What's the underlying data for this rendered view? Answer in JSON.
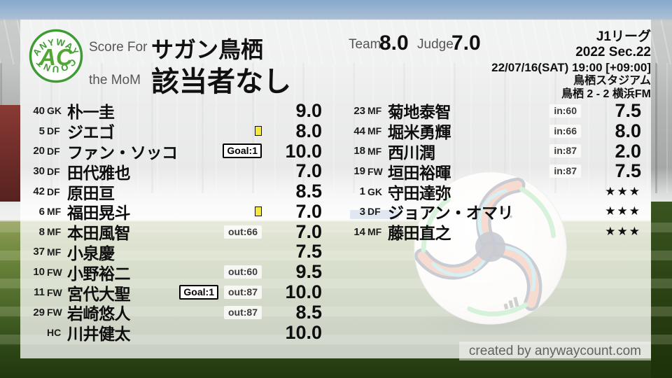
{
  "header": {
    "logo": {
      "arc_top": "ANYWAY",
      "arc_bottom": "COUNT",
      "monogram": "AC"
    },
    "score_for_label": "Score For",
    "team_name": "サガン鳥栖",
    "mom_label": "the MoM",
    "mom_value": "該当者なし",
    "team_label": "Team",
    "team_score": "8.0",
    "judge_label": "Judge",
    "judge_score": "7.0",
    "meta": [
      "J1リーグ",
      "2022 Sec.22",
      "22/07/16(SAT) 19:00 [+09:00]",
      "鳥栖スタジアム",
      "鳥栖 2 - 2 横浜FM"
    ]
  },
  "players": {
    "left": [
      {
        "num": "40",
        "pos": "GK",
        "name": "朴一圭",
        "rating": "9.0"
      },
      {
        "num": "5",
        "pos": "DF",
        "name": "ジエゴ",
        "yellow": true,
        "rating": "8.0"
      },
      {
        "num": "20",
        "pos": "DF",
        "name": "ファン・ソッコ",
        "goal": "Goal:1",
        "rating": "10.0"
      },
      {
        "num": "30",
        "pos": "DF",
        "name": "田代雅也",
        "rating": "7.0"
      },
      {
        "num": "42",
        "pos": "DF",
        "name": "原田亘",
        "rating": "8.5"
      },
      {
        "num": "6",
        "pos": "MF",
        "name": "福田晃斗",
        "yellow": true,
        "rating": "7.0"
      },
      {
        "num": "8",
        "pos": "MF",
        "name": "本田風智",
        "sub": "out:66",
        "rating": "7.0"
      },
      {
        "num": "37",
        "pos": "MF",
        "name": "小泉慶",
        "rating": "7.5"
      },
      {
        "num": "10",
        "pos": "FW",
        "name": "小野裕二",
        "sub": "out:60",
        "rating": "9.5"
      },
      {
        "num": "11",
        "pos": "FW",
        "name": "宮代大聖",
        "goal": "Goal:1",
        "sub": "out:87",
        "rating": "10.0"
      },
      {
        "num": "29",
        "pos": "FW",
        "name": "岩崎悠人",
        "sub": "out:87",
        "rating": "8.5"
      },
      {
        "num": "",
        "pos": "HC",
        "name": "川井健太",
        "rating": "10.0"
      }
    ],
    "right": [
      {
        "num": "23",
        "pos": "MF",
        "name": "菊地泰智",
        "sub": "in:60",
        "rating": "7.5"
      },
      {
        "num": "44",
        "pos": "MF",
        "name": "堀米勇輝",
        "sub": "in:66",
        "rating": "8.0"
      },
      {
        "num": "18",
        "pos": "MF",
        "name": "西川潤",
        "sub": "in:87",
        "rating": "2.0"
      },
      {
        "num": "19",
        "pos": "FW",
        "name": "垣田裕暉",
        "sub": "in:87",
        "rating": "7.5"
      },
      {
        "num": "1",
        "pos": "GK",
        "name": "守田達弥",
        "rating": "★★★",
        "unrated": true
      },
      {
        "num": "3",
        "pos": "DF",
        "name": "ジョアン・オマリ",
        "rating": "★★★",
        "unrated": true
      },
      {
        "num": "14",
        "pos": "MF",
        "name": "藤田直之",
        "rating": "★★★",
        "unrated": true
      }
    ]
  },
  "footer": {
    "credit": "created by anywaycount.com"
  },
  "colors": {
    "logo_green": "#3f9b35",
    "yellow_card": "#f4ea3d",
    "text_dark": "#101010",
    "text_gray": "#565656",
    "overlay_white": "rgba(255,255,255,0.75)"
  }
}
